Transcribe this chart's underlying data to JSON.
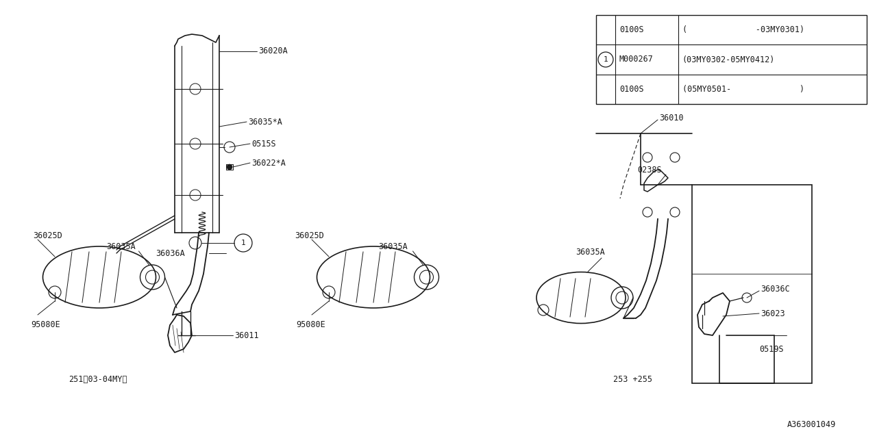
{
  "bg_color": "#ffffff",
  "line_color": "#1a1a1a",
  "fig_id": "A363001049",
  "figsize": [
    12.8,
    6.4
  ],
  "dpi": 100,
  "table": {
    "col_labels": [
      "",
      "0100S",
      "(              -03MY0301)"
    ],
    "col_labels2": [
      "1",
      "M000267",
      "(03MY0302-05MY0412)"
    ],
    "col_labels3": [
      "",
      "0100S",
      "(05MY0501-              )"
    ]
  }
}
